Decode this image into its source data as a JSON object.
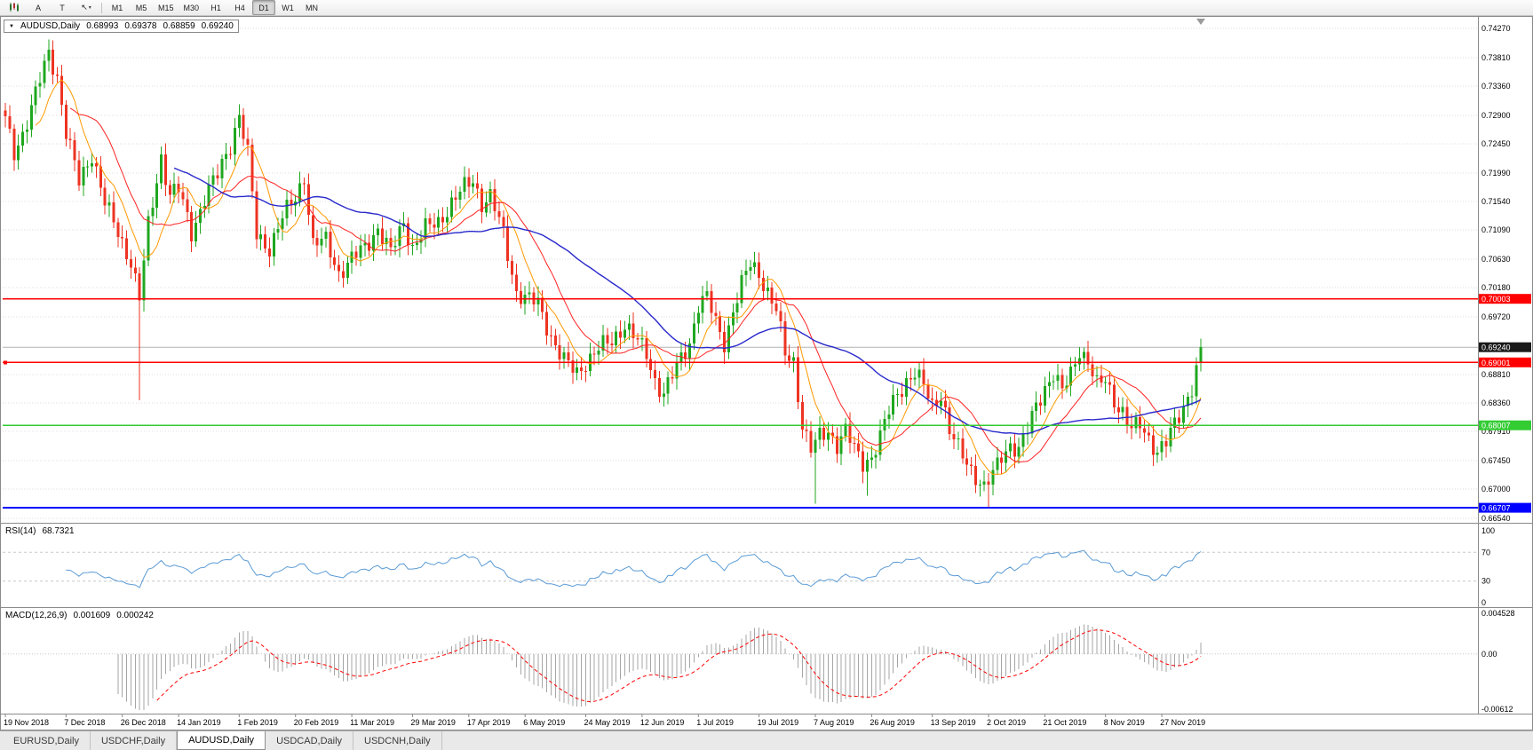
{
  "toolbar": {
    "a_label": "A",
    "t_label": "T",
    "cursor_label": "↖",
    "dropdown_caret": "▾",
    "timeframes": [
      "M1",
      "M5",
      "M15",
      "M30",
      "H1",
      "H4",
      "D1",
      "W1",
      "MN"
    ],
    "active_timeframe": "D1"
  },
  "symbol_box": {
    "collapse": "▼",
    "title": "AUDUSD,Daily",
    "open": "0.68993",
    "high": "0.69378",
    "low": "0.68859",
    "close": "0.69240"
  },
  "price_axis": {
    "ticks": [
      "0.74270",
      "0.73810",
      "0.73360",
      "0.72900",
      "0.72450",
      "0.71990",
      "0.71540",
      "0.71090",
      "0.70630",
      "0.70180",
      "0.69720",
      "0.68810",
      "0.68360",
      "0.67910",
      "0.67450",
      "0.67000",
      "0.66540"
    ],
    "current": {
      "value": "0.69240",
      "bg": "#1a1a1a",
      "fg": "#ffffff"
    },
    "line_labels": [
      {
        "value": "0.70003",
        "price": 0.70003,
        "bg": "#ff0000",
        "fg": "#ffffff"
      },
      {
        "value": "0.69001",
        "price": 0.69001,
        "bg": "#ff0000",
        "fg": "#ffffff"
      },
      {
        "value": "0.68007",
        "price": 0.68007,
        "bg": "#33cc33",
        "fg": "#ffffff"
      },
      {
        "value": "0.66707",
        "price": 0.66707,
        "bg": "#0000ff",
        "fg": "#ffffff"
      }
    ]
  },
  "rsi_pane": {
    "name": "RSI(14)",
    "value": "68.7321",
    "axis": [
      "100",
      "70",
      "30",
      "0"
    ],
    "levels": [
      70,
      30
    ],
    "color": "#5b9bd5"
  },
  "macd_pane": {
    "name": "MACD(12,26,9)",
    "value_main": "0.001609",
    "value_signal": "0.000242",
    "axis_top": "0.004528",
    "axis_zero": "0.00",
    "axis_bottom": "-0.00612"
  },
  "time_axis": [
    {
      "i": 0,
      "text": "19 Nov 2018"
    },
    {
      "i": 14,
      "text": "7 Dec 2018"
    },
    {
      "i": 27,
      "text": "26 Dec 2018"
    },
    {
      "i": 40,
      "text": "14 Jan 2019"
    },
    {
      "i": 54,
      "text": "1 Feb 2019"
    },
    {
      "i": 67,
      "text": "20 Feb 2019"
    },
    {
      "i": 80,
      "text": "11 Mar 2019"
    },
    {
      "i": 94,
      "text": "29 Mar 2019"
    },
    {
      "i": 107,
      "text": "17 Apr 2019"
    },
    {
      "i": 120,
      "text": "6 May 2019"
    },
    {
      "i": 134,
      "text": "24 May 2019"
    },
    {
      "i": 147,
      "text": "12 Jun 2019"
    },
    {
      "i": 160,
      "text": "1 Jul 2019"
    },
    {
      "i": 174,
      "text": "19 Jul 2019"
    },
    {
      "i": 187,
      "text": "7 Aug 2019"
    },
    {
      "i": 200,
      "text": "26 Aug 2019"
    },
    {
      "i": 214,
      "text": "13 Sep 2019"
    },
    {
      "i": 227,
      "text": "2 Oct 2019"
    },
    {
      "i": 240,
      "text": "21 Oct 2019"
    },
    {
      "i": 254,
      "text": "8 Nov 2019"
    },
    {
      "i": 267,
      "text": "27 Nov 2019"
    }
  ],
  "tabs": {
    "items": [
      "EURUSD,Daily",
      "USDCHF,Daily",
      "AUDUSD,Daily",
      "USDCAD,Daily",
      "USDCNH,Daily"
    ],
    "active": "AUDUSD,Daily"
  },
  "chart_data": {
    "type": "candlestick",
    "symbol": "AUDUSD",
    "timeframe": "Daily",
    "bars": 277,
    "price_range": {
      "top": 0.7427,
      "bottom": 0.6654
    },
    "current_bar": {
      "open": 0.68993,
      "high": 0.69378,
      "low": 0.68859,
      "close": 0.6924
    },
    "horizontal_lines": [
      {
        "price": 0.70003,
        "color": "#ff0000",
        "width": 1.2
      },
      {
        "price": 0.69001,
        "color": "#ff0000",
        "width": 1.2
      },
      {
        "price": 0.68007,
        "color": "#33cc33",
        "width": 1.6
      },
      {
        "price": 0.66707,
        "color": "#0000ff",
        "width": 2
      }
    ],
    "anchors": [
      [
        0,
        0.7282
      ],
      [
        2,
        0.7232
      ],
      [
        4,
        0.7262
      ],
      [
        6,
        0.73
      ],
      [
        8,
        0.7345
      ],
      [
        10,
        0.739
      ],
      [
        12,
        0.7352
      ],
      [
        14,
        0.7262
      ],
      [
        17,
        0.7185
      ],
      [
        20,
        0.723
      ],
      [
        23,
        0.715
      ],
      [
        26,
        0.7105
      ],
      [
        29,
        0.706
      ],
      [
        31,
        0.7
      ],
      [
        33,
        0.7115
      ],
      [
        36,
        0.7225
      ],
      [
        38,
        0.7165
      ],
      [
        40,
        0.7172
      ],
      [
        43,
        0.7105
      ],
      [
        46,
        0.716
      ],
      [
        49,
        0.7195
      ],
      [
        52,
        0.7245
      ],
      [
        54,
        0.7292
      ],
      [
        56,
        0.7228
      ],
      [
        58,
        0.71
      ],
      [
        61,
        0.7082
      ],
      [
        64,
        0.7128
      ],
      [
        67,
        0.716
      ],
      [
        69,
        0.7195
      ],
      [
        71,
        0.7085
      ],
      [
        74,
        0.7092
      ],
      [
        77,
        0.7042
      ],
      [
        80,
        0.7062
      ],
      [
        83,
        0.7082
      ],
      [
        86,
        0.7112
      ],
      [
        89,
        0.7072
      ],
      [
        92,
        0.7122
      ],
      [
        94,
        0.7082
      ],
      [
        97,
        0.711
      ],
      [
        100,
        0.7122
      ],
      [
        103,
        0.7152
      ],
      [
        106,
        0.7175
      ],
      [
        108,
        0.7188
      ],
      [
        110,
        0.7152
      ],
      [
        112,
        0.7162
      ],
      [
        115,
        0.7102
      ],
      [
        118,
        0.7012
      ],
      [
        120,
        0.7002
      ],
      [
        123,
        0.6992
      ],
      [
        126,
        0.6942
      ],
      [
        129,
        0.6902
      ],
      [
        132,
        0.6882
      ],
      [
        134,
        0.6902
      ],
      [
        137,
        0.6922
      ],
      [
        140,
        0.6932
      ],
      [
        143,
        0.6962
      ],
      [
        146,
        0.6932
      ],
      [
        148,
        0.6912
      ],
      [
        150,
        0.6872
      ],
      [
        152,
        0.6852
      ],
      [
        155,
        0.6892
      ],
      [
        158,
        0.6932
      ],
      [
        160,
        0.6992
      ],
      [
        162,
        0.7002
      ],
      [
        164,
        0.6962
      ],
      [
        166,
        0.6932
      ],
      [
        168,
        0.6982
      ],
      [
        170,
        0.7022
      ],
      [
        172,
        0.7055
      ],
      [
        174,
        0.7042
      ],
      [
        176,
        0.7012
      ],
      [
        178,
        0.6982
      ],
      [
        180,
        0.6912
      ],
      [
        182,
        0.6902
      ],
      [
        184,
        0.6802
      ],
      [
        186,
        0.6762
      ],
      [
        188,
        0.6782
      ],
      [
        190,
        0.6792
      ],
      [
        192,
        0.6772
      ],
      [
        194,
        0.6792
      ],
      [
        196,
        0.6762
      ],
      [
        198,
        0.6742
      ],
      [
        200,
        0.6752
      ],
      [
        202,
        0.6782
      ],
      [
        204,
        0.6822
      ],
      [
        206,
        0.6852
      ],
      [
        208,
        0.6872
      ],
      [
        210,
        0.6882
      ],
      [
        212,
        0.6862
      ],
      [
        214,
        0.6832
      ],
      [
        216,
        0.6852
      ],
      [
        218,
        0.6792
      ],
      [
        220,
        0.6762
      ],
      [
        222,
        0.6742
      ],
      [
        224,
        0.6722
      ],
      [
        226,
        0.6702
      ],
      [
        228,
        0.6722
      ],
      [
        230,
        0.6752
      ],
      [
        232,
        0.6772
      ],
      [
        234,
        0.6762
      ],
      [
        236,
        0.6792
      ],
      [
        238,
        0.6832
      ],
      [
        240,
        0.6862
      ],
      [
        242,
        0.6882
      ],
      [
        244,
        0.6852
      ],
      [
        246,
        0.6882
      ],
      [
        248,
        0.6922
      ],
      [
        250,
        0.6902
      ],
      [
        252,
        0.6862
      ],
      [
        254,
        0.6872
      ],
      [
        256,
        0.6842
      ],
      [
        258,
        0.6822
      ],
      [
        260,
        0.6792
      ],
      [
        262,
        0.6802
      ],
      [
        264,
        0.6782
      ],
      [
        266,
        0.676
      ],
      [
        268,
        0.6772
      ],
      [
        270,
        0.6802
      ],
      [
        272,
        0.6832
      ],
      [
        274,
        0.6862
      ],
      [
        275,
        0.6888
      ],
      [
        276,
        0.6924
      ]
    ],
    "special_lows": {
      "31": 0.684,
      "187": 0.6677,
      "199": 0.669,
      "227": 0.6671
    },
    "moving_averages": [
      {
        "period": 8,
        "color": "#ff9900",
        "width": 1
      },
      {
        "period": 16,
        "color": "#ff2222",
        "width": 1
      },
      {
        "period": 40,
        "color": "#2929cc",
        "width": 1.4
      }
    ],
    "rsi": {
      "period": 14,
      "levels": [
        70,
        30
      ]
    },
    "macd": {
      "fast": 12,
      "slow": 26,
      "signal": 9,
      "hist_color": "#a6a6a6",
      "signal_color": "#ff0000"
    },
    "colors": {
      "up": "#1fa71f",
      "down": "#ee3322",
      "grid": "#dcdcdc",
      "bid_line": "#b4b4b4",
      "frame": "#8a8a8a"
    }
  }
}
